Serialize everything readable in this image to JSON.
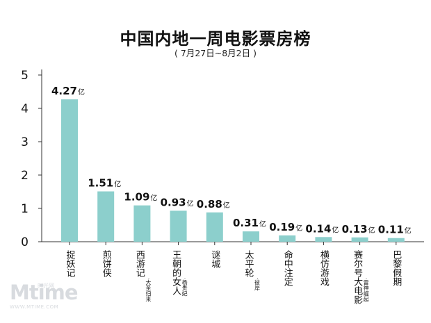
{
  "chart_data": {
    "type": "bar",
    "title": "中国内地一周电影票房榜",
    "subtitle": "( 7月27日~8月2日 )",
    "unit": "亿",
    "ylim": [
      0,
      5
    ],
    "yticks": [
      "0",
      "1",
      "2",
      "3",
      "4",
      "5"
    ],
    "bar_color": "#8ccfcc",
    "categories": [
      {
        "name": "捉妖记",
        "sub": ""
      },
      {
        "name": "煎饼侠",
        "sub": ""
      },
      {
        "name": "西游记",
        "sub": "·大圣归来"
      },
      {
        "name": "王朝的女人",
        "sub": "·杨贵妃"
      },
      {
        "name": "谜城",
        "sub": ""
      },
      {
        "name": "太平轮",
        "sub": "·彼岸"
      },
      {
        "name": "命中注定",
        "sub": ""
      },
      {
        "name": "横仿游戏",
        "sub": ""
      },
      {
        "name": "赛尔号大电影",
        "sub": "·雷神崛起"
      },
      {
        "name": "巴黎假期",
        "sub": ""
      }
    ],
    "values": [
      4.27,
      1.51,
      1.09,
      0.93,
      0.88,
      0.31,
      0.19,
      0.14,
      0.13,
      0.11
    ],
    "value_labels": [
      "4.27",
      "1.51",
      "1.09",
      "0.93",
      "0.88",
      "0.31",
      "0.19",
      "0.14",
      "0.13",
      "0.11"
    ]
  },
  "watermark": {
    "brand": "Mtime",
    "cn": "时光网",
    "url": "WWW.MTIME.COM"
  }
}
